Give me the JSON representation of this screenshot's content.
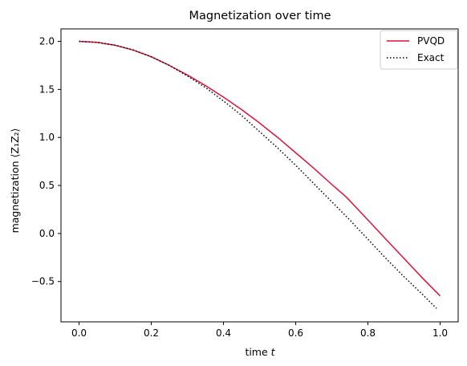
{
  "chart_data": {
    "type": "line",
    "title": "Magnetization over time",
    "xlabel": "time t",
    "ylabel": "magnetization ⟨Z₁Z₂⟩",
    "xlim": [
      -0.05,
      1.05
    ],
    "ylim": [
      -0.92,
      2.13
    ],
    "xticks": [
      0.0,
      0.2,
      0.4,
      0.6,
      0.8,
      1.0
    ],
    "xtick_labels": [
      "0.0",
      "0.2",
      "0.4",
      "0.6",
      "0.8",
      "1.0"
    ],
    "yticks": [
      -0.5,
      0.0,
      0.5,
      1.0,
      1.5,
      2.0
    ],
    "ytick_labels": [
      "−0.5",
      "0.0",
      "0.5",
      "1.0",
      "1.5",
      "2.0"
    ],
    "grid": false,
    "legend_position": "top-right",
    "series": [
      {
        "name": "PVQD",
        "color": "#dc143c",
        "style": "solid",
        "x": [
          0.0,
          0.05,
          0.1,
          0.15,
          0.2,
          0.25,
          0.3,
          0.35,
          0.4,
          0.45,
          0.5,
          0.55,
          0.6,
          0.65,
          0.7,
          0.74,
          0.8,
          0.85,
          0.9,
          0.95,
          1.0
        ],
        "y": [
          2.0,
          1.99,
          1.96,
          1.91,
          1.84,
          1.75,
          1.65,
          1.54,
          1.42,
          1.29,
          1.15,
          1.0,
          0.84,
          0.68,
          0.51,
          0.38,
          0.14,
          -0.06,
          -0.26,
          -0.46,
          -0.65
        ]
      },
      {
        "name": "Exact",
        "color": "#000000",
        "style": "dotted",
        "x": [
          0.0,
          0.05,
          0.1,
          0.15,
          0.2,
          0.25,
          0.3,
          0.35,
          0.4,
          0.45,
          0.5,
          0.55,
          0.6,
          0.65,
          0.7,
          0.75,
          0.8,
          0.85,
          0.9,
          0.95,
          0.99
        ],
        "y": [
          2.0,
          1.99,
          1.96,
          1.91,
          1.84,
          1.75,
          1.64,
          1.52,
          1.38,
          1.23,
          1.06,
          0.89,
          0.71,
          0.52,
          0.33,
          0.14,
          -0.06,
          -0.26,
          -0.45,
          -0.63,
          -0.78
        ]
      }
    ]
  }
}
